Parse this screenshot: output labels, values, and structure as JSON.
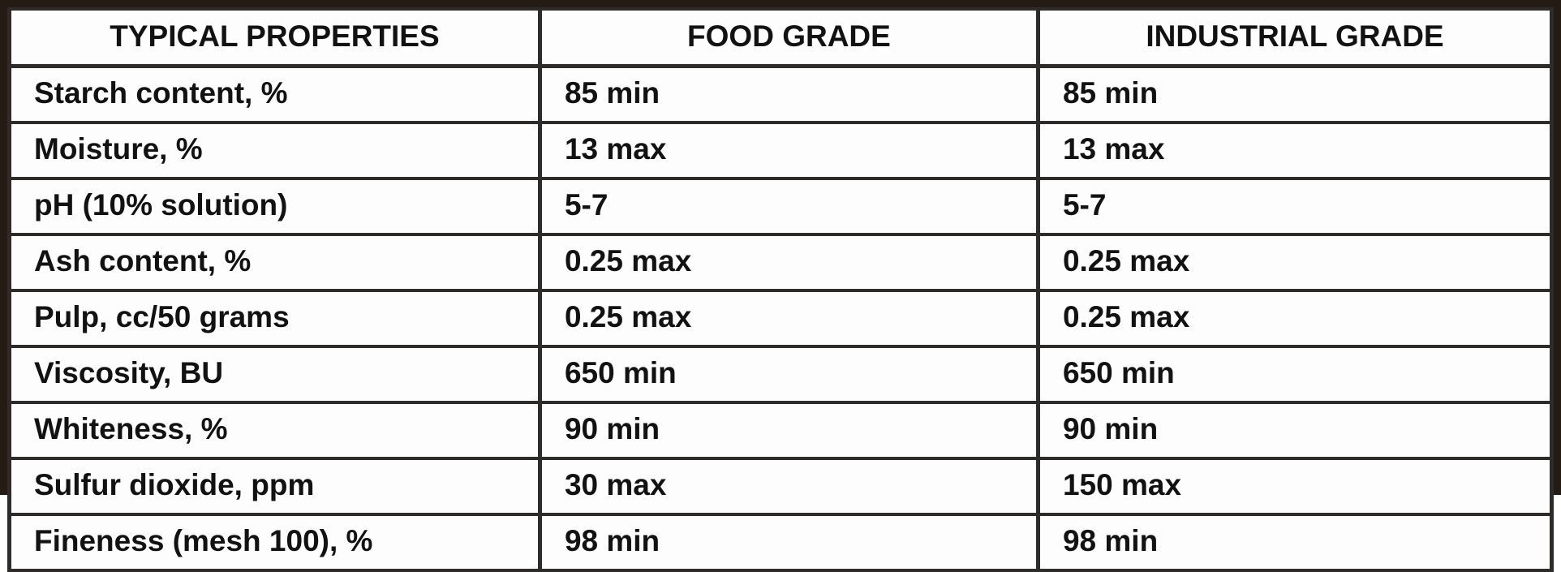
{
  "table": {
    "columns": [
      "TYPICAL PROPERTIES",
      "FOOD GRADE",
      "INDUSTRIAL GRADE"
    ],
    "rows": [
      {
        "property": "Starch content, %",
        "food_grade": "85 min",
        "industrial_grade": "85 min"
      },
      {
        "property": "Moisture, %",
        "food_grade": "13 max",
        "industrial_grade": "13 max"
      },
      {
        "property": "pH (10% solution)",
        "food_grade": "5-7",
        "industrial_grade": "5-7"
      },
      {
        "property": "Ash content, %",
        "food_grade": "0.25 max",
        "industrial_grade": "0.25 max"
      },
      {
        "property": "Pulp, cc/50 grams",
        "food_grade": "0.25 max",
        "industrial_grade": "0.25 max"
      },
      {
        "property": "Viscosity, BU",
        "food_grade": "650 min",
        "industrial_grade": "650 min"
      },
      {
        "property": "Whiteness, %",
        "food_grade": "90 min",
        "industrial_grade": "90 min"
      },
      {
        "property": "Sulfur dioxide, ppm",
        "food_grade": "30 max",
        "industrial_grade": "150 max"
      },
      {
        "property": "Fineness (mesh 100), %",
        "food_grade": "98 min",
        "industrial_grade": "98 min"
      }
    ]
  },
  "colors": {
    "frame": "#241b15",
    "grid_line": "#2e2c2b",
    "cell_background": "#fdfdfd",
    "text": "#121212"
  }
}
